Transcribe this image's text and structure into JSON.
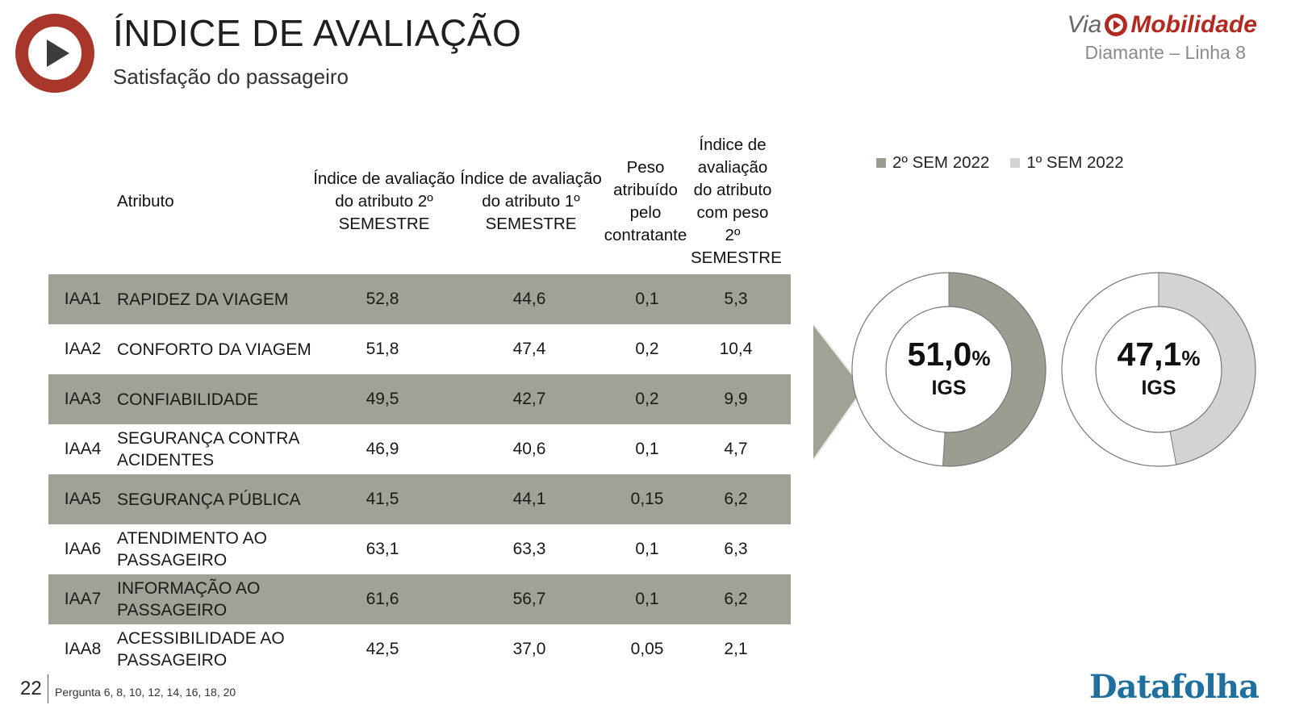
{
  "header": {
    "title": "ÍNDICE DE AVALIAÇÃO",
    "subtitle": "Satisfação do passageiro"
  },
  "brand": {
    "via": "Via",
    "mobilidade": "Mobilidade",
    "line": "Diamante – Linha 8"
  },
  "table": {
    "headers": {
      "atributo": "Atributo",
      "idx2": "Índice de avaliação do atributo 2º SEMESTRE",
      "idx1": "Índice de avaliação do atributo 1º SEMESTRE",
      "peso": "Peso atribuído pelo contratante",
      "ponderado": "Índice de avaliação do atributo com peso 2º SEMESTRE"
    },
    "rows": [
      {
        "code": "IAA1",
        "attr": "RAPIDEZ DA VIAGEM",
        "s2": "52,8",
        "s1": "44,6",
        "peso": "0,1",
        "pond": "5,3"
      },
      {
        "code": "IAA2",
        "attr": "CONFORTO DA VIAGEM",
        "s2": "51,8",
        "s1": "47,4",
        "peso": "0,2",
        "pond": "10,4"
      },
      {
        "code": "IAA3",
        "attr": "CONFIABILIDADE",
        "s2": "49,5",
        "s1": "42,7",
        "peso": "0,2",
        "pond": "9,9"
      },
      {
        "code": "IAA4",
        "attr": "SEGURANÇA CONTRA ACIDENTES",
        "s2": "46,9",
        "s1": "40,6",
        "peso": "0,1",
        "pond": "4,7"
      },
      {
        "code": "IAA5",
        "attr": "SEGURANÇA PÚBLICA",
        "s2": "41,5",
        "s1": "44,1",
        "peso": "0,15",
        "pond": "6,2"
      },
      {
        "code": "IAA6",
        "attr": "ATENDIMENTO AO PASSAGEIRO",
        "s2": "63,1",
        "s1": "63,3",
        "peso": "0,1",
        "pond": "6,3"
      },
      {
        "code": "IAA7",
        "attr": "INFORMAÇÃO AO PASSAGEIRO",
        "s2": "61,6",
        "s1": "56,7",
        "peso": "0,1",
        "pond": "6,2"
      },
      {
        "code": "IAA8",
        "attr": "ACESSIBILIDADE AO PASSAGEIRO",
        "s2": "42,5",
        "s1": "37,0",
        "peso": "0,05",
        "pond": "2,1"
      }
    ]
  },
  "chart_data": {
    "type": "pie",
    "legend": [
      "2º SEM 2022",
      "1º SEM 2022"
    ],
    "legend_position": "top",
    "series": [
      {
        "name": "2º SEM 2022",
        "value": 51.0,
        "value_label": "51,0",
        "unit": "%",
        "label": "IGS",
        "color": "#9c9d91"
      },
      {
        "name": "1º SEM 2022",
        "value": 47.1,
        "value_label": "47,1",
        "unit": "%",
        "label": "IGS",
        "color": "#d3d3d3"
      }
    ]
  },
  "footer": {
    "page": "22",
    "question": "Pergunta 6, 8, 10, 12, 14, 16, 18, 20",
    "logo": "Datafolha"
  },
  "colors": {
    "brand_red": "#b22a1f",
    "row_shade": "#a1a296",
    "sem2": "#9c9d91",
    "sem1": "#d3d3d3",
    "datafolha_blue": "#1f6f9f"
  }
}
